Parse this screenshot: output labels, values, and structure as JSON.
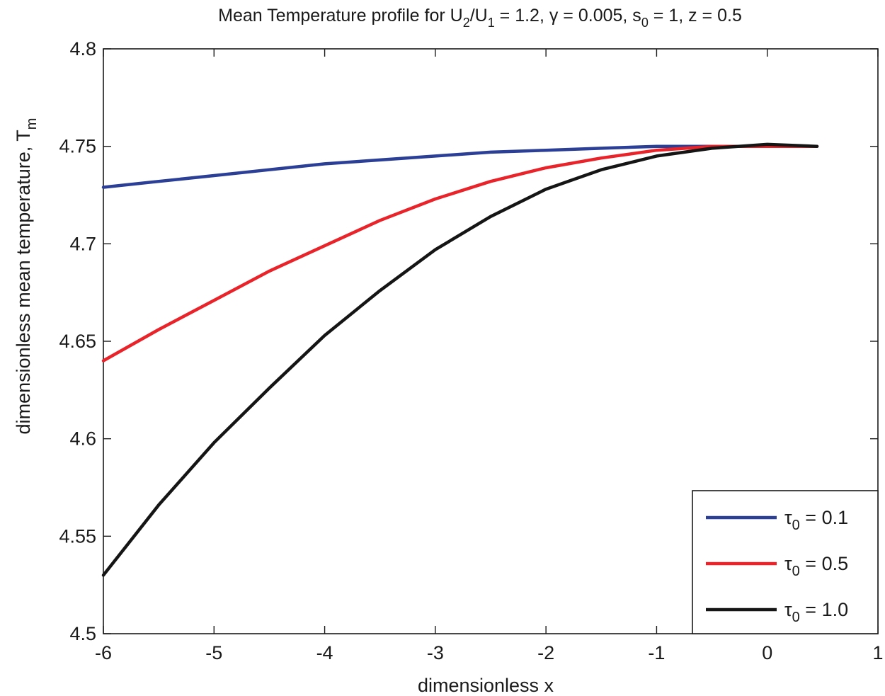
{
  "chart_data": {
    "type": "line",
    "title": {
      "prefix": "Mean Temperature profile for U",
      "sub1": "2",
      "mid1": "/U",
      "sub2": "1",
      "mid2": " = 1.2,  γ = 0.005, s",
      "sub3": "0",
      "suffix": " = 1, z = 0.5"
    },
    "xlabel": "dimensionless x",
    "ylabel": {
      "main": "dimensionless mean temperature,  T",
      "sub": "m"
    },
    "xlim": [
      -6,
      1
    ],
    "ylim": [
      4.5,
      4.8
    ],
    "xticks": [
      -6,
      -5,
      -4,
      -3,
      -2,
      -1,
      0,
      1
    ],
    "xtick_labels": [
      "-6",
      "-5",
      "-4",
      "-3",
      "-2",
      "-1",
      "0",
      "1"
    ],
    "yticks": [
      4.5,
      4.55,
      4.6,
      4.65,
      4.7,
      4.75,
      4.8
    ],
    "ytick_labels": [
      "4.5",
      "4.55",
      "4.6",
      "4.65",
      "4.7",
      "4.75",
      "4.8"
    ],
    "grid": false,
    "legend_position": "bottom-right",
    "series": [
      {
        "name": "τ0 = 0.1",
        "legend_symbol": "τ",
        "legend_sub": "0",
        "legend_value": " = 0.1",
        "color": "#2b3f97",
        "x": [
          -6,
          -5.5,
          -5,
          -4.5,
          -4,
          -3.5,
          -3,
          -2.5,
          -2,
          -1.5,
          -1,
          -0.5,
          0,
          0.45
        ],
        "y": [
          4.729,
          4.732,
          4.735,
          4.738,
          4.741,
          4.743,
          4.745,
          4.747,
          4.748,
          4.749,
          4.75,
          4.75,
          4.75,
          4.75
        ]
      },
      {
        "name": "τ0 = 0.5",
        "legend_symbol": "τ",
        "legend_sub": "0",
        "legend_value": " = 0.5",
        "color": "#e8242a",
        "x": [
          -6,
          -5.5,
          -5,
          -4.5,
          -4,
          -3.5,
          -3,
          -2.5,
          -2,
          -1.5,
          -1,
          -0.5,
          0,
          0.45
        ],
        "y": [
          4.64,
          4.656,
          4.671,
          4.686,
          4.699,
          4.712,
          4.723,
          4.732,
          4.739,
          4.744,
          4.748,
          4.75,
          4.75,
          4.75
        ]
      },
      {
        "name": "τ0 = 1.0",
        "legend_symbol": "τ",
        "legend_sub": "0",
        "legend_value": " = 1.0",
        "color": "#151515",
        "x": [
          -6,
          -5.5,
          -5,
          -4.5,
          -4,
          -3.5,
          -3,
          -2.5,
          -2,
          -1.5,
          -1,
          -0.5,
          0,
          0.45
        ],
        "y": [
          4.53,
          4.566,
          4.598,
          4.626,
          4.653,
          4.676,
          4.697,
          4.714,
          4.728,
          4.738,
          4.745,
          4.749,
          4.751,
          4.75
        ]
      }
    ]
  }
}
